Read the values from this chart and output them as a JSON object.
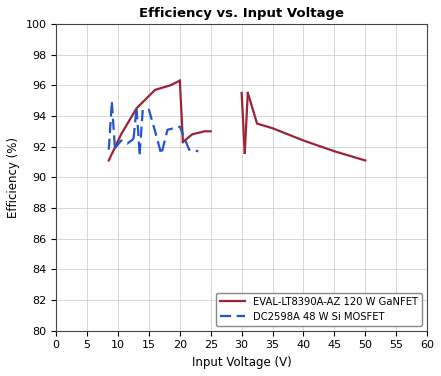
{
  "title": "Efficiency vs. Input Voltage",
  "xlabel": "Input Voltage (V)",
  "ylabel": "Efficiency (%)",
  "xlim": [
    0,
    60
  ],
  "ylim": [
    80,
    100
  ],
  "xticks": [
    0,
    5,
    10,
    15,
    20,
    25,
    30,
    35,
    40,
    45,
    50,
    55,
    60
  ],
  "yticks": [
    80,
    82,
    84,
    86,
    88,
    90,
    92,
    94,
    96,
    98,
    100
  ],
  "gan_color": "#9b2335",
  "si_color": "#2255cc",
  "gan_label": "EVAL-LT8390A-AZ 120 W GaNFET",
  "si_label": "DC2598A 48 W Si MOSFET",
  "gan_segments": [
    {
      "x": [
        8.5,
        10.5,
        13.0,
        16.0,
        18.5,
        19.5,
        20.0
      ],
      "y": [
        91.1,
        92.8,
        94.5,
        95.7,
        96.0,
        96.2,
        96.3
      ]
    },
    {
      "x": [
        20.0,
        20.5
      ],
      "y": [
        96.3,
        92.3
      ]
    },
    {
      "x": [
        20.5,
        22.0,
        24.0,
        25.0
      ],
      "y": [
        92.3,
        92.8,
        93.0,
        93.0
      ]
    },
    {
      "x": [
        30.0,
        30.5
      ],
      "y": [
        95.5,
        91.6
      ]
    },
    {
      "x": [
        30.5,
        31.0
      ],
      "y": [
        91.6,
        95.5
      ]
    },
    {
      "x": [
        31.0,
        32.5,
        35.0,
        40.0,
        45.0,
        50.0
      ],
      "y": [
        95.5,
        93.5,
        93.2,
        92.4,
        91.7,
        91.1
      ]
    }
  ],
  "si_segments": [
    {
      "x": [
        8.5,
        9.0
      ],
      "y": [
        91.8,
        94.9
      ]
    },
    {
      "x": [
        9.0,
        9.5
      ],
      "y": [
        94.9,
        91.9
      ]
    },
    {
      "x": [
        9.5,
        10.5,
        11.5,
        12.5
      ],
      "y": [
        91.9,
        92.4,
        92.2,
        92.5
      ]
    },
    {
      "x": [
        12.5,
        13.0
      ],
      "y": [
        92.5,
        94.5
      ]
    },
    {
      "x": [
        13.0,
        13.5
      ],
      "y": [
        94.5,
        91.5
      ]
    },
    {
      "x": [
        13.5,
        14.0,
        15.0,
        16.0,
        17.0,
        18.0,
        20.0,
        21.5,
        23.0
      ],
      "y": [
        91.5,
        94.4,
        94.4,
        93.0,
        91.5,
        93.1,
        93.3,
        91.8,
        91.7
      ]
    }
  ]
}
